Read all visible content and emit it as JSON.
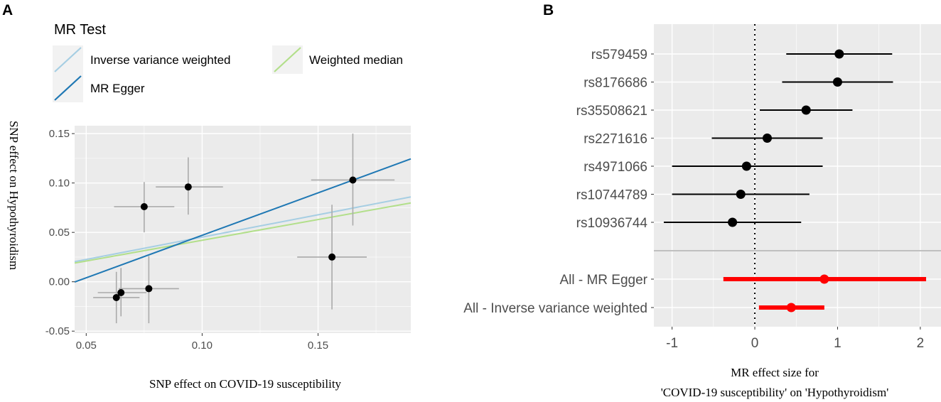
{
  "colors": {
    "panel_bg": "#ebebeb",
    "grid": "#ffffff",
    "ivw": "#a6cee3",
    "egger": "#1f78b4",
    "median": "#b2df8a",
    "snp_point": "#000000",
    "errorbar_a": "#aaaaaa",
    "summary": "#ff0000",
    "separator": "#bfbfbf"
  },
  "panel_a": {
    "label": "A",
    "legend": {
      "title": "MR Test",
      "items": [
        {
          "label": "Inverse variance weighted",
          "color": "#a6cee3"
        },
        {
          "label": "Weighted median",
          "color": "#b2df8a"
        },
        {
          "label": "MR Egger",
          "color": "#1f78b4"
        }
      ]
    }
  },
  "panel_b": {
    "label": "B"
  },
  "chart_data": [
    {
      "type": "scatter",
      "title": "",
      "xlabel": "SNP effect on COVID-19 susceptibility",
      "ylabel": "SNP effect on Hypothyroidism",
      "xlim": [
        0.045,
        0.19
      ],
      "ylim": [
        -0.052,
        0.158
      ],
      "xticks": [
        0.05,
        0.1,
        0.15
      ],
      "xtick_labels": [
        "0.05",
        "0.10",
        "0.15"
      ],
      "yticks": [
        -0.05,
        0.0,
        0.05,
        0.1,
        0.15
      ],
      "ytick_labels": [
        "-0.05",
        "0.00",
        "0.05",
        "0.10",
        "0.15"
      ],
      "points": [
        {
          "x": 0.063,
          "y": -0.016,
          "x_lo": 0.053,
          "x_hi": 0.073,
          "y_lo": -0.042,
          "y_hi": 0.01
        },
        {
          "x": 0.065,
          "y": -0.011,
          "x_lo": 0.055,
          "x_hi": 0.076,
          "y_lo": -0.035,
          "y_hi": 0.014
        },
        {
          "x": 0.075,
          "y": 0.076,
          "x_lo": 0.062,
          "x_hi": 0.088,
          "y_lo": 0.05,
          "y_hi": 0.101
        },
        {
          "x": 0.077,
          "y": -0.007,
          "x_lo": 0.064,
          "x_hi": 0.09,
          "y_lo": -0.042,
          "y_hi": 0.026
        },
        {
          "x": 0.094,
          "y": 0.096,
          "x_lo": 0.08,
          "x_hi": 0.109,
          "y_lo": 0.068,
          "y_hi": 0.126
        },
        {
          "x": 0.156,
          "y": 0.025,
          "x_lo": 0.141,
          "x_hi": 0.171,
          "y_lo": -0.028,
          "y_hi": 0.078
        },
        {
          "x": 0.165,
          "y": 0.103,
          "x_lo": 0.147,
          "x_hi": 0.183,
          "y_lo": 0.057,
          "y_hi": 0.15
        }
      ],
      "lines": [
        {
          "name": "Inverse variance weighted",
          "color": "#a6cee3",
          "intercept": 0.0,
          "slope": 0.452
        },
        {
          "name": "Weighted median",
          "color": "#b2df8a",
          "intercept": 0.0,
          "slope": 0.42
        },
        {
          "name": "MR Egger",
          "color": "#1f78b4",
          "intercept": -0.039,
          "slope": 0.86
        }
      ],
      "legend_position": "top"
    },
    {
      "type": "forest",
      "title": "",
      "xlabel_line1": "MR effect size for",
      "xlabel_line2": "'COVID-19 susceptibility' on 'Hypothyroidism'",
      "xlim": [
        -1.22,
        2.25
      ],
      "xticks": [
        -1,
        0,
        1,
        2
      ],
      "xtick_labels": [
        "-1",
        "0",
        "1",
        "2"
      ],
      "reference_line": 0,
      "snps": [
        {
          "label": "rs579459",
          "estimate": 1.02,
          "lo": 0.38,
          "hi": 1.66
        },
        {
          "label": "rs8176686",
          "estimate": 1.0,
          "lo": 0.33,
          "hi": 1.67
        },
        {
          "label": "rs35508621",
          "estimate": 0.62,
          "lo": 0.06,
          "hi": 1.18
        },
        {
          "label": "rs2271616",
          "estimate": 0.15,
          "lo": -0.52,
          "hi": 0.82
        },
        {
          "label": "rs4971066",
          "estimate": -0.1,
          "lo": -1.0,
          "hi": 0.82
        },
        {
          "label": "rs10744789",
          "estimate": -0.17,
          "lo": -1.0,
          "hi": 0.66
        },
        {
          "label": "rs10936744",
          "estimate": -0.27,
          "lo": -1.1,
          "hi": 0.56
        }
      ],
      "summary": [
        {
          "label": "All - MR Egger",
          "estimate": 0.84,
          "lo": -0.38,
          "hi": 2.07
        },
        {
          "label": "All - Inverse variance weighted",
          "estimate": 0.44,
          "lo": 0.05,
          "hi": 0.84
        }
      ]
    }
  ]
}
